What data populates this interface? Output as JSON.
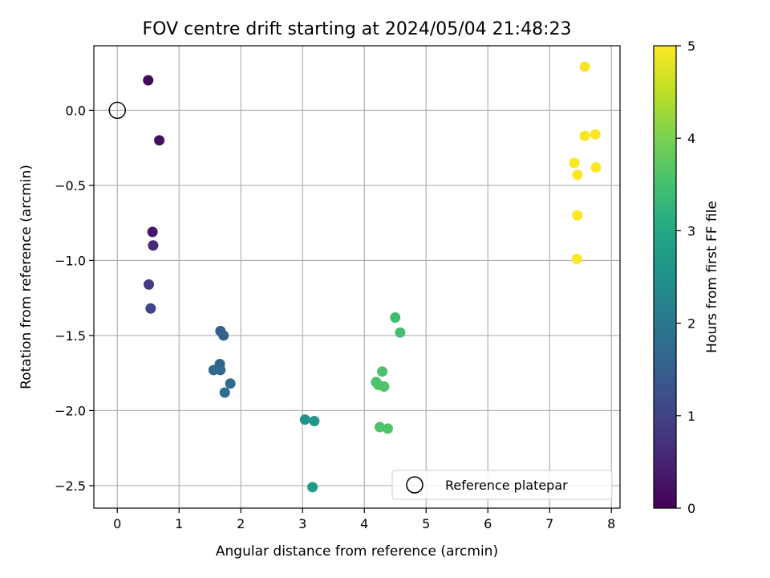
{
  "chart_data": {
    "type": "scatter",
    "title": "FOV centre drift starting at 2024/05/04 21:48:23",
    "xlabel": "Angular distance from reference (arcmin)",
    "ylabel": "Rotation from reference (arcmin)",
    "xlim": [
      -0.38,
      8.14
    ],
    "ylim": [
      -2.65,
      0.43
    ],
    "xticks": [
      0,
      1,
      2,
      3,
      4,
      5,
      6,
      7,
      8
    ],
    "xtick_labels": [
      "0",
      "1",
      "2",
      "3",
      "4",
      "5",
      "6",
      "7",
      "8"
    ],
    "yticks": [
      0.0,
      -0.5,
      -1.0,
      -1.5,
      -2.0,
      -2.5
    ],
    "ytick_labels": [
      "0.0",
      "−0.5",
      "−1.0",
      "−1.5",
      "−2.0",
      "−2.5"
    ],
    "grid": true,
    "colorbar": {
      "label": "Hours from first FF file",
      "colormap": "viridis",
      "range": [
        0,
        5
      ],
      "ticks": [
        0,
        1,
        2,
        3,
        4,
        5
      ],
      "tick_labels": [
        "0",
        "1",
        "2",
        "3",
        "4",
        "5"
      ]
    },
    "reference": {
      "label": "Reference platepar",
      "x": 0,
      "y": 0,
      "marker": "open-circle"
    },
    "legend": {
      "placement": "lower-right",
      "entries": [
        "Reference platepar"
      ]
    },
    "points": [
      {
        "x": 0.5,
        "y": 0.2,
        "hours": 0.12
      },
      {
        "x": 0.68,
        "y": -0.2,
        "hours": 0.2
      },
      {
        "x": 0.57,
        "y": -0.81,
        "hours": 0.3
      },
      {
        "x": 0.58,
        "y": -0.9,
        "hours": 0.6
      },
      {
        "x": 0.51,
        "y": -1.16,
        "hours": 0.85
      },
      {
        "x": 0.54,
        "y": -1.32,
        "hours": 1.0
      },
      {
        "x": 1.67,
        "y": -1.47,
        "hours": 1.5
      },
      {
        "x": 1.72,
        "y": -1.5,
        "hours": 1.55
      },
      {
        "x": 1.66,
        "y": -1.69,
        "hours": 1.6
      },
      {
        "x": 1.56,
        "y": -1.73,
        "hours": 1.65
      },
      {
        "x": 1.67,
        "y": -1.73,
        "hours": 1.7
      },
      {
        "x": 1.83,
        "y": -1.82,
        "hours": 1.75
      },
      {
        "x": 1.74,
        "y": -1.88,
        "hours": 1.8
      },
      {
        "x": 3.04,
        "y": -2.06,
        "hours": 2.55
      },
      {
        "x": 3.19,
        "y": -2.07,
        "hours": 2.6
      },
      {
        "x": 3.16,
        "y": -2.51,
        "hours": 2.7
      },
      {
        "x": 4.5,
        "y": -1.38,
        "hours": 3.45
      },
      {
        "x": 4.58,
        "y": -1.48,
        "hours": 3.5
      },
      {
        "x": 4.29,
        "y": -1.74,
        "hours": 3.55
      },
      {
        "x": 4.19,
        "y": -1.81,
        "hours": 3.55
      },
      {
        "x": 4.23,
        "y": -1.83,
        "hours": 3.6
      },
      {
        "x": 4.32,
        "y": -1.84,
        "hours": 3.6
      },
      {
        "x": 4.25,
        "y": -2.11,
        "hours": 3.6
      },
      {
        "x": 4.38,
        "y": -2.12,
        "hours": 3.6
      },
      {
        "x": 7.57,
        "y": 0.29,
        "hours": 4.95
      },
      {
        "x": 7.74,
        "y": -0.16,
        "hours": 4.98
      },
      {
        "x": 7.57,
        "y": -0.17,
        "hours": 4.95
      },
      {
        "x": 7.4,
        "y": -0.35,
        "hours": 4.98
      },
      {
        "x": 7.75,
        "y": -0.38,
        "hours": 5.0
      },
      {
        "x": 7.45,
        "y": -0.43,
        "hours": 5.0
      },
      {
        "x": 7.45,
        "y": -0.7,
        "hours": 5.0
      },
      {
        "x": 7.44,
        "y": -0.99,
        "hours": 5.0
      }
    ]
  }
}
